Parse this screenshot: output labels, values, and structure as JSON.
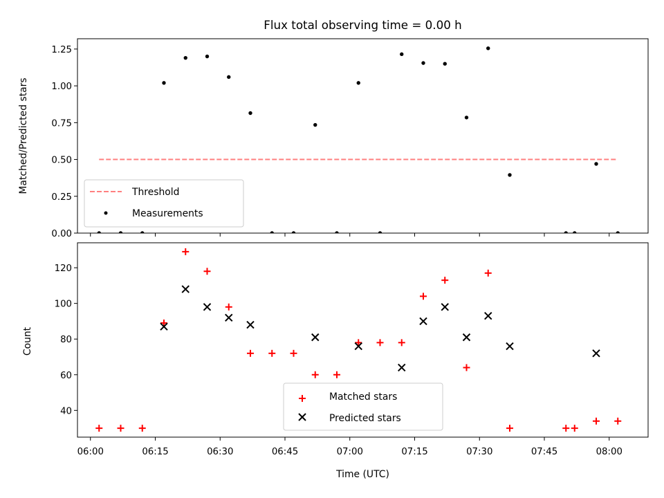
{
  "chart_data": [
    {
      "type": "scatter",
      "title": "Flux total observing time = 0.00 h",
      "xlabel": "",
      "ylabel": "Matched/Predicted stars",
      "xlim": [
        "05:57",
        "08:09"
      ],
      "ylim": [
        0,
        1.32
      ],
      "yticks": [
        "0.00",
        "0.25",
        "0.50",
        "0.75",
        "1.00",
        "1.25"
      ],
      "legend_placement": "lower-left",
      "series": [
        {
          "name": "Threshold",
          "kind": "dashed-line",
          "color": "#ff7f7f",
          "x": [
            "06:02",
            "08:02"
          ],
          "y": [
            0.5,
            0.5
          ]
        },
        {
          "name": "Measurements",
          "kind": "dots",
          "color": "#000000",
          "points": [
            [
              "06:02",
              0.0
            ],
            [
              "06:07",
              0.0
            ],
            [
              "06:12",
              0.0
            ],
            [
              "06:17",
              1.02
            ],
            [
              "06:22",
              1.19
            ],
            [
              "06:27",
              1.2
            ],
            [
              "06:32",
              1.06
            ],
            [
              "06:37",
              0.815
            ],
            [
              "06:42",
              0.0
            ],
            [
              "06:47",
              0.0
            ],
            [
              "06:52",
              0.735
            ],
            [
              "06:57",
              0.0
            ],
            [
              "07:02",
              1.02
            ],
            [
              "07:07",
              0.0
            ],
            [
              "07:12",
              1.215
            ],
            [
              "07:17",
              1.155
            ],
            [
              "07:22",
              1.15
            ],
            [
              "07:27",
              0.785
            ],
            [
              "07:32",
              1.255
            ],
            [
              "07:37",
              0.395
            ],
            [
              "07:50",
              0.0
            ],
            [
              "07:52",
              0.0
            ],
            [
              "07:57",
              0.47
            ],
            [
              "08:02",
              0.0
            ]
          ]
        }
      ]
    },
    {
      "type": "scatter",
      "title": "",
      "xlabel": "Time (UTC)",
      "ylabel": "Count",
      "xlim": [
        "05:57",
        "08:09"
      ],
      "ylim": [
        25,
        134
      ],
      "yticks": [
        "40",
        "60",
        "80",
        "100",
        "120"
      ],
      "xticks": [
        "06:00",
        "06:15",
        "06:30",
        "06:45",
        "07:00",
        "07:15",
        "07:30",
        "07:45",
        "08:00"
      ],
      "legend_placement": "lower-center",
      "series": [
        {
          "name": "Matched stars",
          "kind": "plus",
          "color": "#ff0000",
          "points": [
            [
              "06:02",
              30
            ],
            [
              "06:07",
              30
            ],
            [
              "06:12",
              30
            ],
            [
              "06:17",
              89
            ],
            [
              "06:22",
              129
            ],
            [
              "06:27",
              118
            ],
            [
              "06:32",
              98
            ],
            [
              "06:37",
              72
            ],
            [
              "06:42",
              72
            ],
            [
              "06:47",
              72
            ],
            [
              "06:52",
              60
            ],
            [
              "06:57",
              60
            ],
            [
              "07:02",
              78
            ],
            [
              "07:07",
              78
            ],
            [
              "07:12",
              78
            ],
            [
              "07:17",
              104
            ],
            [
              "07:22",
              113
            ],
            [
              "07:27",
              64
            ],
            [
              "07:32",
              117
            ],
            [
              "07:37",
              30
            ],
            [
              "07:50",
              30
            ],
            [
              "07:52",
              30
            ],
            [
              "07:57",
              34
            ],
            [
              "08:02",
              34
            ]
          ]
        },
        {
          "name": "Predicted stars",
          "kind": "cross",
          "color": "#000000",
          "points": [
            [
              "06:17",
              87
            ],
            [
              "06:22",
              108
            ],
            [
              "06:27",
              98
            ],
            [
              "06:32",
              92
            ],
            [
              "06:37",
              88
            ],
            [
              "06:52",
              81
            ],
            [
              "07:02",
              76
            ],
            [
              "07:12",
              64
            ],
            [
              "07:17",
              90
            ],
            [
              "07:22",
              98
            ],
            [
              "07:27",
              81
            ],
            [
              "07:32",
              93
            ],
            [
              "07:37",
              76
            ],
            [
              "07:57",
              72
            ]
          ]
        }
      ]
    }
  ]
}
